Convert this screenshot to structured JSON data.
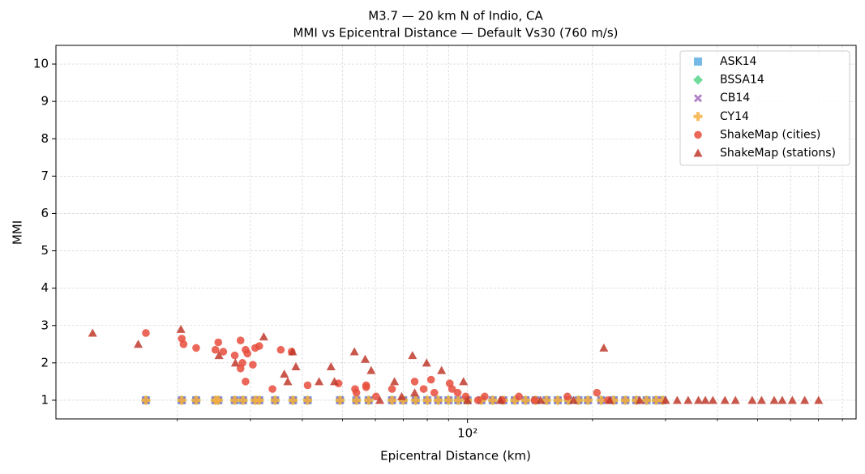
{
  "chart_data": {
    "type": "scatter",
    "title": "M3.7 — 20 km N of Indio, CA",
    "subtitle": "MMI vs Epicentral Distance — Default Vs30 (760 m/s)",
    "x_label": "Epicentral Distance (km)",
    "y_label": "MMI",
    "x_log": true,
    "grid": true,
    "legend_loc": "upper right",
    "xlim": [
      10.2,
      863
    ],
    "ylim": [
      0.5,
      10.5
    ],
    "xticks": [
      {
        "value": 100,
        "label": "10²"
      }
    ],
    "xminor": [
      20,
      30,
      40,
      50,
      60,
      70,
      80,
      90,
      200,
      300,
      400,
      500,
      600,
      700,
      800
    ],
    "yticks": [
      1,
      2,
      3,
      4,
      5,
      6,
      7,
      8,
      9,
      10
    ],
    "series": [
      {
        "name": "ASK14",
        "color": "#5dade2",
        "marker": "square",
        "x": [
          16.8,
          20.5,
          22.2,
          24.7,
          25.1,
          27.5,
          28.8,
          30.8,
          31.5,
          34.4,
          38.0,
          41.2,
          49.3,
          54.0,
          57.8,
          65.8,
          70,
          75,
          80,
          85,
          90,
          95,
          100,
          108,
          115,
          122,
          130,
          138,
          146,
          155,
          165,
          175,
          185,
          195,
          210,
          225,
          240,
          255,
          270,
          285,
          295
        ],
        "values": [
          1,
          1,
          1,
          1,
          1,
          1,
          1,
          1,
          1,
          1,
          1,
          1,
          1,
          1,
          1,
          1,
          1,
          1,
          1,
          1,
          1,
          1,
          1,
          1,
          1,
          1,
          1,
          1,
          1,
          1,
          1,
          1,
          1,
          1,
          1,
          1,
          1,
          1,
          1,
          1,
          1
        ]
      },
      {
        "name": "BSSA14",
        "color": "#58d68d",
        "marker": "diamond",
        "x": [
          16.8,
          20.5,
          22.2,
          24.7,
          25.1,
          27.5,
          28.8,
          30.8,
          31.5,
          34.4,
          38.0,
          41.2,
          49.3,
          54.0,
          57.8,
          65.8,
          70,
          75,
          80,
          85,
          90,
          95,
          100,
          108,
          115,
          122,
          130,
          138,
          146,
          155,
          165,
          175,
          185,
          195,
          210,
          225,
          240,
          255,
          270,
          285,
          295
        ],
        "values": [
          1,
          1,
          1,
          1,
          1,
          1,
          1,
          1,
          1,
          1,
          1,
          1,
          1,
          1,
          1,
          1,
          1,
          1,
          1,
          1,
          1,
          1,
          1,
          1,
          1,
          1,
          1,
          1,
          1,
          1,
          1,
          1,
          1,
          1,
          1,
          1,
          1,
          1,
          1,
          1,
          1
        ]
      },
      {
        "name": "CB14",
        "color": "#a569bd",
        "marker": "x",
        "x": [
          16.8,
          20.5,
          22.2,
          24.7,
          25.1,
          27.5,
          28.8,
          30.8,
          31.5,
          34.4,
          38.0,
          41.2,
          49.3,
          54.0,
          57.8,
          65.8,
          70,
          75,
          80,
          85,
          90,
          95,
          100,
          108,
          115,
          122,
          130,
          138,
          146,
          155,
          165,
          175,
          185,
          195,
          210,
          225,
          240,
          255,
          270,
          285,
          295
        ],
        "values": [
          1,
          1,
          1,
          1,
          1,
          1,
          1,
          1,
          1,
          1,
          1,
          1,
          1,
          1,
          1,
          1,
          1,
          1,
          1,
          1,
          1,
          1,
          1,
          1,
          1,
          1,
          1,
          1,
          1,
          1,
          1,
          1,
          1,
          1,
          1,
          1,
          1,
          1,
          1,
          1,
          1
        ]
      },
      {
        "name": "CY14",
        "color": "#f5b041",
        "marker": "plus",
        "x": [
          16.8,
          20.5,
          22.2,
          24.7,
          25.1,
          27.5,
          28.8,
          30.8,
          31.5,
          34.4,
          38.0,
          41.2,
          49.3,
          54.0,
          57.8,
          65.8,
          70,
          75,
          80,
          85,
          90,
          95,
          100,
          108,
          115,
          122,
          130,
          138,
          146,
          155,
          165,
          175,
          185,
          195,
          210,
          225,
          240,
          255,
          270,
          285,
          295
        ],
        "values": [
          1,
          1,
          1,
          1,
          1,
          1,
          1,
          1,
          1,
          1,
          1,
          1,
          1,
          1,
          1,
          1,
          1,
          1,
          1,
          1,
          1,
          1,
          1,
          1,
          1,
          1,
          1,
          1,
          1,
          1,
          1,
          1,
          1,
          1,
          1,
          1,
          1,
          1,
          1,
          1,
          1
        ]
      },
      {
        "name": "ShakeMap (cities)",
        "color": "#e74c3c",
        "marker": "circle",
        "x": [
          16.8,
          20.5,
          20.7,
          22.2,
          24.7,
          25.1,
          25.8,
          27.5,
          28.4,
          28.4,
          28.7,
          29.2,
          29.2,
          29.5,
          30.4,
          30.8,
          31.5,
          33.9,
          35.5,
          37.7,
          41.2,
          48.9,
          53.6,
          54,
          57,
          57,
          60.2,
          65.8,
          74.6,
          78.4,
          81.7,
          83.2,
          90.6,
          91.8,
          94.7,
          99,
          106,
          110,
          121,
          133,
          145,
          174,
          205,
          218
        ],
        "values": [
          2.8,
          2.65,
          2.5,
          2.4,
          2.35,
          2.55,
          2.3,
          2.2,
          2.6,
          1.85,
          2.0,
          2.35,
          1.5,
          2.25,
          1.95,
          2.4,
          2.45,
          1.3,
          2.35,
          2.3,
          1.4,
          1.45,
          1.3,
          1.2,
          1.4,
          1.35,
          1.1,
          1.3,
          1.5,
          1.3,
          1.55,
          1.2,
          1.45,
          1.3,
          1.2,
          1.1,
          1.0,
          1.1,
          1.0,
          1.1,
          1.0,
          1.1,
          1.2,
          1.0
        ]
      },
      {
        "name": "ShakeMap (stations)",
        "color": "#c0392b",
        "marker": "triangle",
        "x": [
          12.5,
          16.1,
          20.4,
          25.2,
          27.6,
          32.3,
          36.2,
          36.9,
          37.9,
          38.6,
          43.9,
          46.9,
          47.8,
          53.4,
          56.7,
          58.6,
          61.5,
          66.7,
          69.4,
          73.7,
          74.6,
          79.7,
          86.6,
          97.8,
          213,
          100,
          120,
          150,
          180,
          220,
          260,
          300,
          320,
          340,
          360,
          374,
          390,
          417,
          442,
          485,
          511,
          548,
          573,
          606,
          649,
          701
        ],
        "values": [
          2.8,
          2.5,
          2.9,
          2.2,
          2.0,
          2.7,
          1.7,
          1.5,
          2.3,
          1.9,
          1.5,
          1.9,
          1.5,
          2.3,
          2.1,
          1.8,
          1.0,
          1.5,
          1.1,
          2.2,
          1.2,
          2.0,
          1.8,
          1.5,
          2.4,
          1.0,
          1.0,
          1.0,
          1.0,
          1.0,
          1.0,
          1.0,
          1.0,
          1.0,
          1.0,
          1.0,
          1.0,
          1.0,
          1.0,
          1.0,
          1.0,
          1.0,
          1.0,
          1.0,
          1.0,
          1.0
        ]
      }
    ]
  }
}
